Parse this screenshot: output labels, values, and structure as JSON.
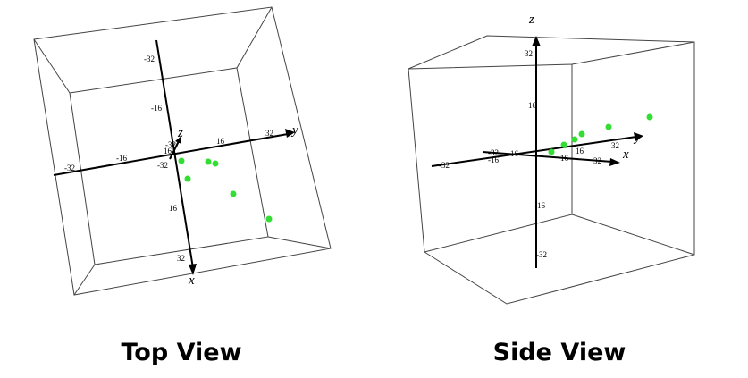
{
  "panels": [
    {
      "caption": "Top View",
      "axis_labels": {
        "x": "x",
        "y": "y",
        "z": "z"
      },
      "x_ticks": [
        "-32",
        "-16",
        "16",
        "32"
      ],
      "y_ticks": [
        "-32",
        "-16",
        "16",
        "32"
      ],
      "z_ticks": [
        "-32",
        "16",
        "-32"
      ]
    },
    {
      "caption": "Side View",
      "axis_labels": {
        "x": "x",
        "y": "y",
        "z": "z"
      },
      "x_ticks": [
        "-32",
        "-16",
        "16",
        "32"
      ],
      "y_ticks": [
        "-32",
        "-16",
        "16",
        "32"
      ],
      "z_ticks": [
        "32",
        "16",
        "-16",
        "-32"
      ]
    }
  ]
}
